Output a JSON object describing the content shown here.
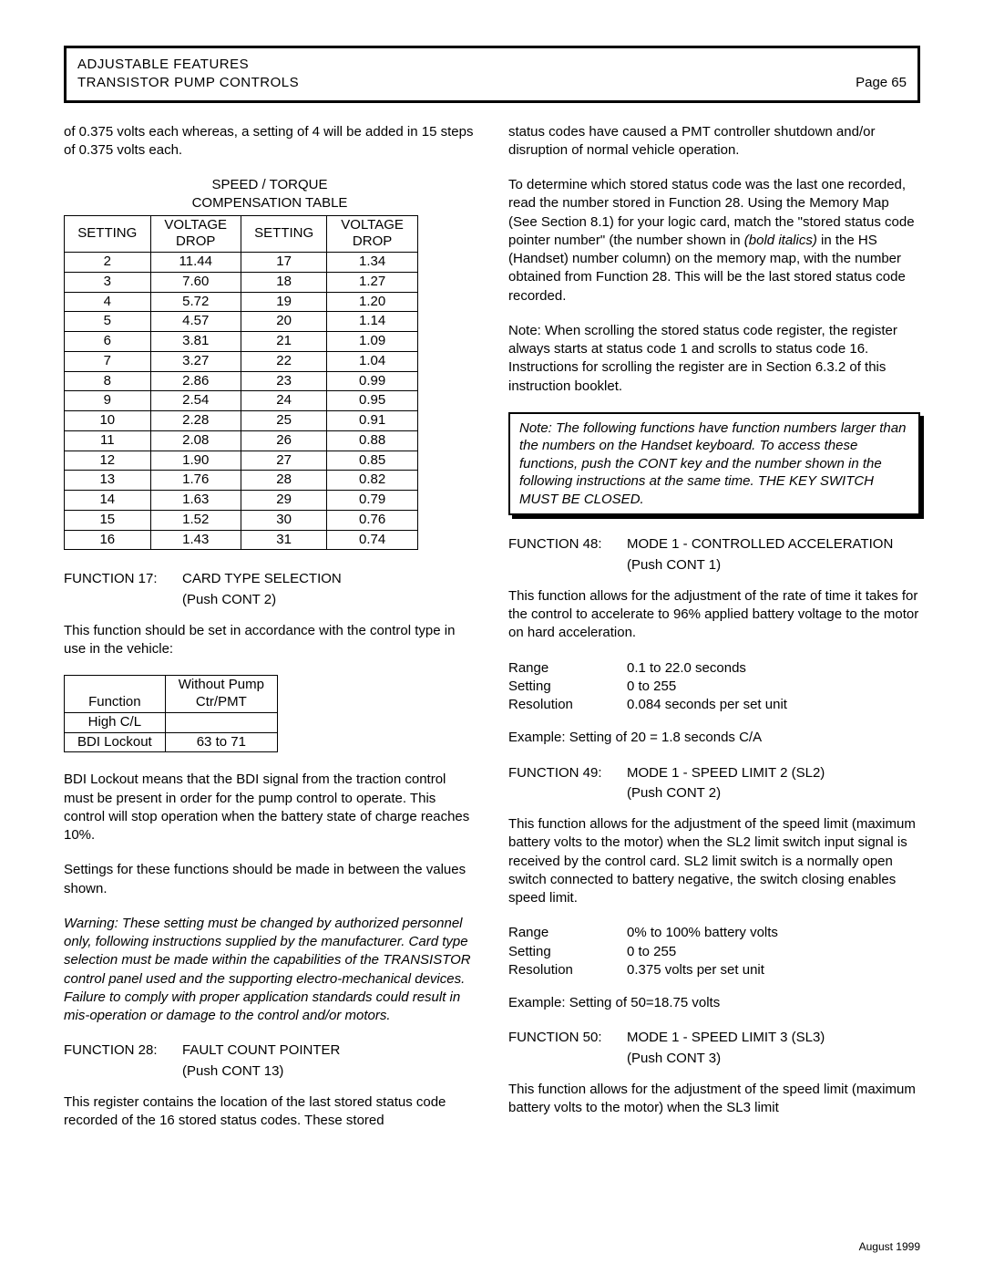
{
  "header": {
    "line1": "ADJUSTABLE FEATURES",
    "line2": "TRANSISTOR PUMP CONTROLS",
    "page": "Page 65"
  },
  "left": {
    "intro": "of 0.375 volts each whereas, a setting of 4 will be added in 15 steps of 0.375 volts each.",
    "compTable": {
      "title1": "SPEED / TORQUE",
      "title2": "COMPENSATION TABLE",
      "headers": [
        "SETTING",
        "VOLTAGE DROP",
        "SETTING",
        "VOLTAGE DROP"
      ],
      "rows": [
        [
          "2",
          "11.44",
          "17",
          "1.34"
        ],
        [
          "3",
          "7.60",
          "18",
          "1.27"
        ],
        [
          "4",
          "5.72",
          "19",
          "1.20"
        ],
        [
          "5",
          "4.57",
          "20",
          "1.14"
        ],
        [
          "6",
          "3.81",
          "21",
          "1.09"
        ],
        [
          "7",
          "3.27",
          "22",
          "1.04"
        ],
        [
          "8",
          "2.86",
          "23",
          "0.99"
        ],
        [
          "9",
          "2.54",
          "24",
          "0.95"
        ],
        [
          "10",
          "2.28",
          "25",
          "0.91"
        ],
        [
          "11",
          "2.08",
          "26",
          "0.88"
        ],
        [
          "12",
          "1.90",
          "27",
          "0.85"
        ],
        [
          "13",
          "1.76",
          "28",
          "0.82"
        ],
        [
          "14",
          "1.63",
          "29",
          "0.79"
        ],
        [
          "15",
          "1.52",
          "30",
          "0.76"
        ],
        [
          "16",
          "1.43",
          "31",
          "0.74"
        ]
      ]
    },
    "f17": {
      "label": "FUNCTION 17:",
      "title": "CARD TYPE SELECTION",
      "push": "(Push CONT 2)",
      "desc": "This function should be set in accordance with the control type in use in the vehicle:"
    },
    "cardTypeTable": {
      "headers": [
        "Function",
        "Without Pump Ctr/PMT"
      ],
      "rows": [
        [
          "High C/L",
          ""
        ],
        [
          "BDI Lockout",
          "63 to 71"
        ]
      ]
    },
    "bdi": "BDI Lockout means that the BDI signal from the traction control must be present in order for the pump control to operate. This control will stop operation when the battery state of charge reaches 10%.",
    "settingsNote": "Settings for these functions should be made in between the values shown.",
    "warning": "Warning: These setting must be changed by authorized personnel only, following instructions supplied by the manufacturer.  Card type selection must be made within the capabilities of the TRANSISTOR control panel used and the supporting electro-mechanical devices.  Failure to comply with proper application standards could result in mis-operation or damage to the control and/or motors.",
    "f28": {
      "label": "FUNCTION 28:",
      "title": "FAULT COUNT POINTER",
      "push": "(Push CONT  13)",
      "desc": "This register contains the location of the last stored status code recorded of the 16 stored status codes.  These stored"
    }
  },
  "right": {
    "p1": "status codes have caused a PMT controller shutdown and/or disruption of normal vehicle operation.",
    "p2a": "To determine which stored status code was the last one recorded, read the number stored in Function 28.  Using the Memory Map (See Section 8.1) for your logic card, match the \"stored status code pointer number\" (the number shown in ",
    "p2b": "(bold italics)",
    "p2c": " in the HS (Handset) number column) on the memory map, with the number obtained from Function 28.  This will be the last stored status code recorded.",
    "p3": "Note: When scrolling the stored status code  register, the register always starts at status code 1 and scrolls to status code 16. Instructions for scrolling the register are in Section 6.3.2 of this instruction booklet.",
    "noteBox": "Note:  The following functions have function numbers larger than the numbers on the Handset keyboard.  To access these functions, push the CONT key and the number shown in the following instructions at the same time. THE KEY SWITCH MUST BE CLOSED.",
    "f48": {
      "label": "FUNCTION 48:",
      "title": "MODE 1 - CONTROLLED ACCELERATION",
      "push": "(Push CONT  1)",
      "desc": "This function allows for the adjustment of the rate of time it takes for the control to accelerate to 96% applied battery voltage to the motor on hard acceleration.",
      "range": "0.1 to 22.0 seconds",
      "setting": "0 to 255",
      "resolution": "0.084 seconds per set unit",
      "example": "Example: Setting of 20 = 1.8 seconds C/A"
    },
    "f49": {
      "label": "FUNCTION 49:",
      "title": "MODE 1 - SPEED LIMIT 2 (SL2)",
      "push": "(Push CONT  2)",
      "desc": "This function allows for the adjustment of the speed limit (maximum battery volts to the motor) when the SL2 limit switch input signal is received by the control card.  SL2 limit switch is a normally open switch connected to battery negative, the switch closing enables speed limit.",
      "range": "0% to 100% battery volts",
      "setting": "0 to 255",
      "resolution": "0.375 volts per set unit",
      "example": "Example: Setting of 50=18.75 volts"
    },
    "f50": {
      "label": "FUNCTION 50:",
      "title": "MODE 1 - SPEED LIMIT 3 (SL3)",
      "push": "(Push CONT 3)",
      "desc": "This function allows for the adjustment of the speed limit (maximum battery volts to the motor) when the SL3 limit"
    },
    "kvLabels": {
      "range": "Range",
      "setting": "Setting",
      "resolution": "Resolution"
    }
  },
  "footerDate": "August 1999"
}
